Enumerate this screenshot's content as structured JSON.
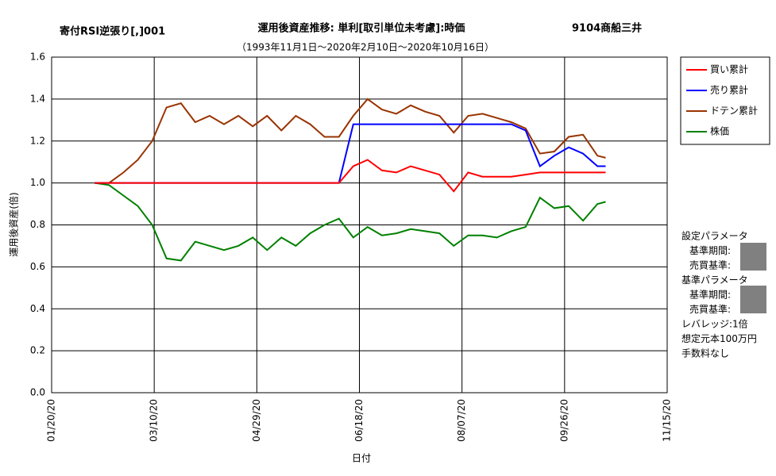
{
  "chart_data": {
    "type": "line",
    "title": "運用後資産推移: 単利[取引単位未考慮]:時価",
    "strategy": "寄付RSI逆張り[,]001",
    "stock": "9104商船三井",
    "subtitle": "（1993年11月1日～2020年2月10日～2020年10月16日）",
    "xlabel": "日付",
    "ylabel": "運用後資産(倍)",
    "x": [
      "02/10/20",
      "02/17/20",
      "02/24/20",
      "03/02/20",
      "03/09/20",
      "03/16/20",
      "03/23/20",
      "03/30/20",
      "04/06/20",
      "04/13/20",
      "04/20/20",
      "04/27/20",
      "05/04/20",
      "05/11/20",
      "05/18/20",
      "05/25/20",
      "06/01/20",
      "06/08/20",
      "06/15/20",
      "06/22/20",
      "06/29/20",
      "07/06/20",
      "07/13/20",
      "07/20/20",
      "07/27/20",
      "08/03/20",
      "08/10/20",
      "08/17/20",
      "08/24/20",
      "08/31/20",
      "09/07/20",
      "09/14/20",
      "09/21/20",
      "09/28/20",
      "10/05/20",
      "10/12/20",
      "10/16/20"
    ],
    "series": [
      {
        "name": "買い累計",
        "color": "#ff0000",
        "values": [
          1.0,
          1.0,
          1.0,
          1.0,
          1.0,
          1.0,
          1.0,
          1.0,
          1.0,
          1.0,
          1.0,
          1.0,
          1.0,
          1.0,
          1.0,
          1.0,
          1.0,
          1.0,
          1.08,
          1.11,
          1.06,
          1.05,
          1.08,
          1.06,
          1.04,
          0.96,
          1.05,
          1.03,
          1.03,
          1.03,
          1.04,
          1.05,
          1.05,
          1.05,
          1.05,
          1.05,
          1.05
        ]
      },
      {
        "name": "売り累計",
        "color": "#0000ff",
        "values": [
          1.0,
          1.0,
          1.0,
          1.0,
          1.0,
          1.0,
          1.0,
          1.0,
          1.0,
          1.0,
          1.0,
          1.0,
          1.0,
          1.0,
          1.0,
          1.0,
          1.0,
          1.0,
          1.28,
          1.28,
          1.28,
          1.28,
          1.28,
          1.28,
          1.28,
          1.28,
          1.28,
          1.28,
          1.28,
          1.28,
          1.25,
          1.08,
          1.13,
          1.17,
          1.14,
          1.08,
          1.08
        ]
      },
      {
        "name": "ドテン累計",
        "color": "#993300",
        "values": [
          1.0,
          1.0,
          1.05,
          1.11,
          1.2,
          1.36,
          1.38,
          1.29,
          1.32,
          1.28,
          1.32,
          1.27,
          1.32,
          1.25,
          1.32,
          1.28,
          1.22,
          1.22,
          1.32,
          1.4,
          1.35,
          1.33,
          1.37,
          1.34,
          1.32,
          1.24,
          1.32,
          1.33,
          1.31,
          1.29,
          1.26,
          1.14,
          1.15,
          1.22,
          1.23,
          1.13,
          1.12
        ]
      },
      {
        "name": "株価",
        "color": "#008000",
        "values": [
          1.0,
          0.99,
          0.94,
          0.89,
          0.8,
          0.64,
          0.63,
          0.72,
          0.7,
          0.68,
          0.7,
          0.74,
          0.68,
          0.74,
          0.7,
          0.76,
          0.8,
          0.83,
          0.74,
          0.79,
          0.75,
          0.76,
          0.78,
          0.77,
          0.76,
          0.7,
          0.75,
          0.75,
          0.74,
          0.77,
          0.79,
          0.93,
          0.88,
          0.89,
          0.82,
          0.9,
          0.91
        ]
      }
    ],
    "xlim": [
      "01/20/20",
      "11/15/20"
    ],
    "xticks": [
      "01/20/20",
      "03/10/20",
      "04/29/20",
      "06/18/20",
      "08/07/20",
      "09/26/20",
      "11/15/20"
    ],
    "ylim": [
      0,
      1.6
    ],
    "yticks": [
      {
        "value": 0,
        "label": "0.0"
      },
      0.2,
      0.4,
      0.6,
      0.8,
      {
        "value": 1,
        "label": "1.0"
      },
      1.2,
      1.4,
      1.6
    ],
    "grid": true,
    "params": [
      "設定パラメータ",
      "基準期間:",
      "売買基準:",
      "基準パラメータ",
      "基準期間:",
      "売買基準:",
      "レバレッジ:1倍",
      "想定元本100万円",
      "手数料なし"
    ]
  }
}
